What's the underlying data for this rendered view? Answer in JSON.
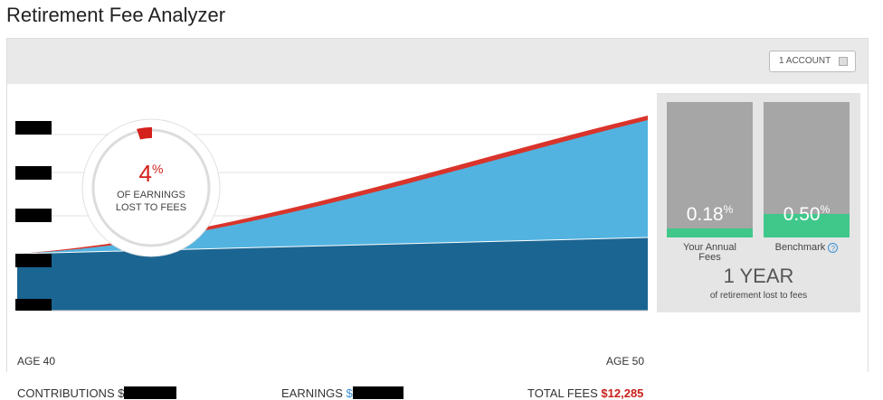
{
  "header": {
    "title": "Retirement Fee Analyzer",
    "account_button": "1 ACCOUNT"
  },
  "donut": {
    "value": "4",
    "unit": "%",
    "line1": "OF EARNINGS",
    "line2": "LOST TO FEES"
  },
  "chart": {
    "start_label": "AGE 40",
    "end_label": "AGE 50"
  },
  "comparison": {
    "yours": {
      "value": "0.18",
      "unit": "%",
      "label": "Your Annual Fees"
    },
    "benchmark": {
      "value": "0.50",
      "unit": "%",
      "label": "Benchmark",
      "help": "?"
    },
    "lost": "1 YEAR",
    "lost_label": "of retirement lost to fees"
  },
  "footer": {
    "contributions": "CONTRIBUTIONS $",
    "earnings_label": "EARNINGS",
    "earnings_currency": "$",
    "total_fees_label": "TOTAL FEES",
    "total_fees": "$12,285"
  }
}
